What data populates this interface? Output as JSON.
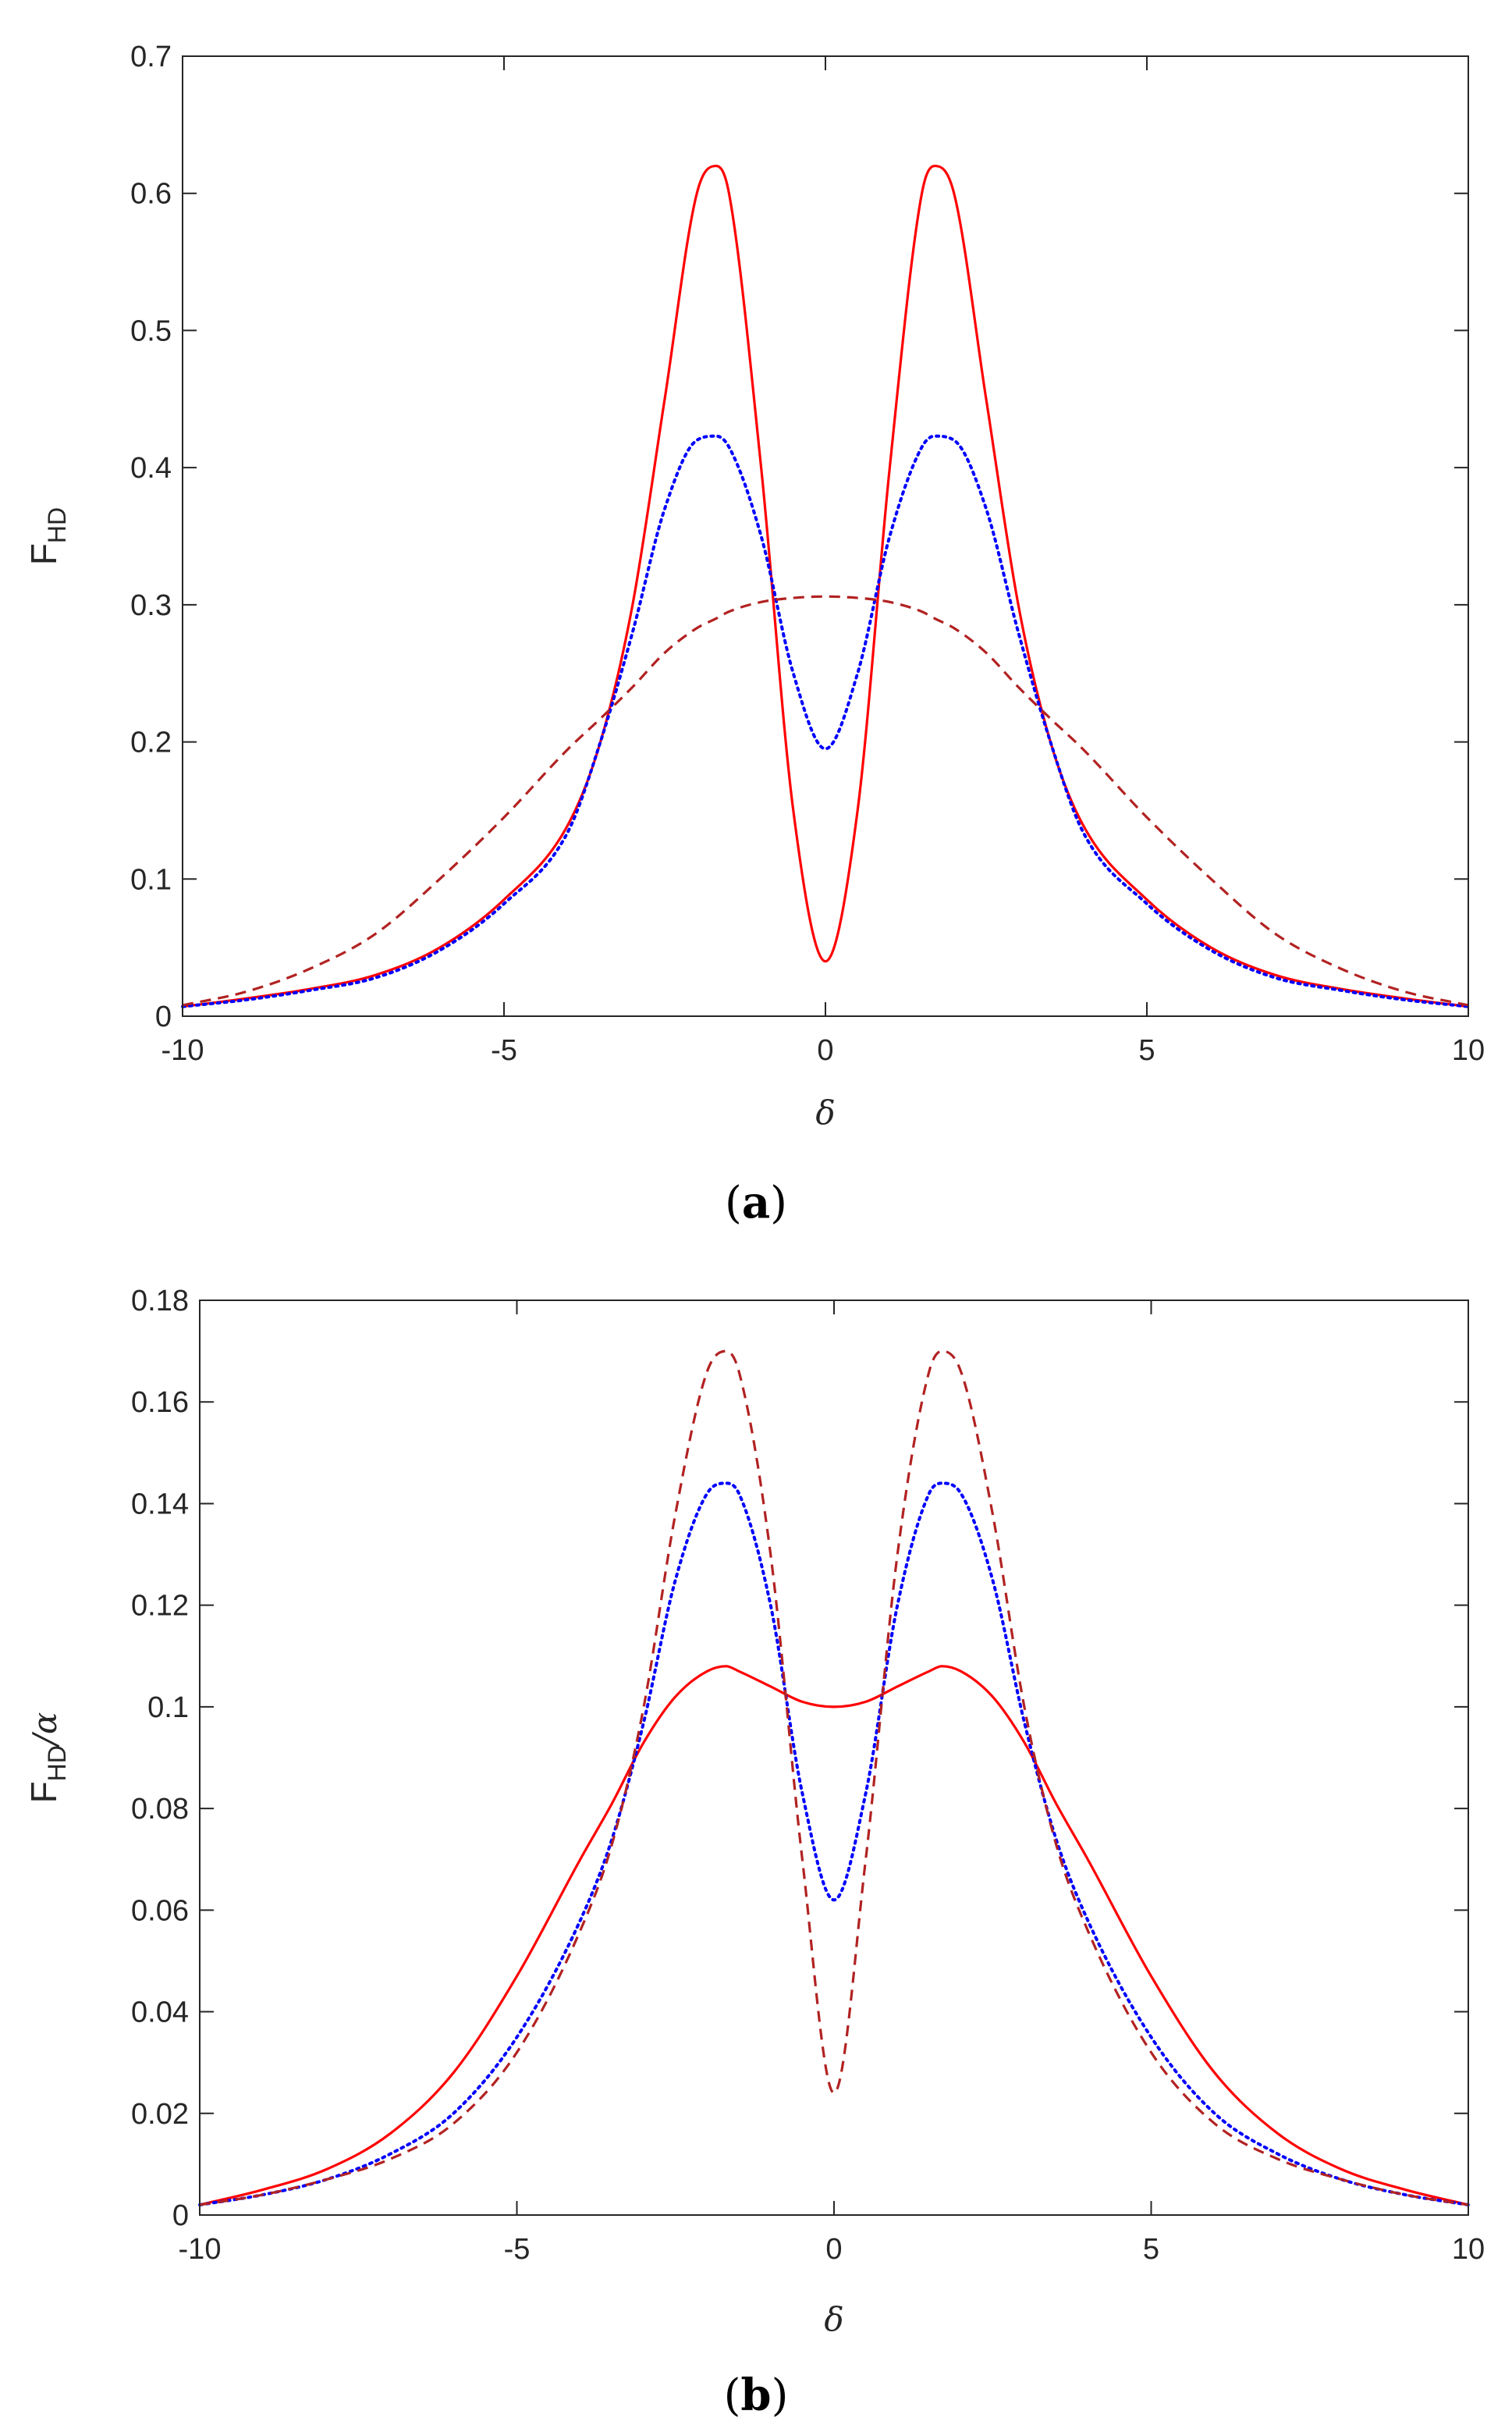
{
  "chart_data": [
    {
      "type": "line",
      "panel_label": "a",
      "xlabel": "δ",
      "ylabel": "F",
      "ylabel_sub": "HD",
      "ylabel_suffix": "",
      "xlim": [
        -10,
        10
      ],
      "ylim": [
        0,
        0.7
      ],
      "xticks": [
        -10,
        -5,
        0,
        5,
        10
      ],
      "xtick_labels": [
        "-10",
        "-5",
        "0",
        "5",
        "10"
      ],
      "yticks": [
        0,
        0.1,
        0.2,
        0.3,
        0.4,
        0.5,
        0.6,
        0.7
      ],
      "ytick_labels": [
        "0",
        "0.1",
        "0.2",
        "0.3",
        "0.4",
        "0.5",
        "0.6",
        "0.7"
      ],
      "grid": false,
      "x": [
        -10,
        -9,
        -8,
        -7,
        -6,
        -5,
        -4,
        -3.5,
        -3,
        -2.5,
        -2,
        -1.7,
        -1.5,
        -1,
        -0.5,
        0,
        0.5,
        1,
        1.5,
        1.7,
        2,
        2.5,
        3,
        3.5,
        4,
        5,
        6,
        7,
        8,
        9,
        10
      ],
      "series": [
        {
          "name": "solid",
          "color": "#ff0000",
          "style": "solid",
          "values": [
            0.007,
            0.013,
            0.02,
            0.03,
            0.05,
            0.085,
            0.14,
            0.2,
            0.3,
            0.45,
            0.6,
            0.62,
            0.6,
            0.4,
            0.15,
            0.04,
            0.15,
            0.4,
            0.6,
            0.62,
            0.6,
            0.45,
            0.3,
            0.2,
            0.14,
            0.085,
            0.05,
            0.03,
            0.02,
            0.013,
            0.007
          ]
        },
        {
          "name": "dotted",
          "color": "#0000ff",
          "style": "dotted",
          "values": [
            0.007,
            0.012,
            0.019,
            0.028,
            0.048,
            0.082,
            0.135,
            0.2,
            0.28,
            0.37,
            0.42,
            0.423,
            0.415,
            0.35,
            0.25,
            0.195,
            0.25,
            0.35,
            0.415,
            0.423,
            0.42,
            0.37,
            0.28,
            0.2,
            0.135,
            0.082,
            0.048,
            0.028,
            0.019,
            0.012,
            0.007
          ]
        },
        {
          "name": "dashed",
          "color": "#b22222",
          "style": "dashed",
          "values": [
            0.008,
            0.018,
            0.035,
            0.06,
            0.1,
            0.145,
            0.195,
            0.217,
            0.24,
            0.265,
            0.283,
            0.29,
            0.295,
            0.302,
            0.305,
            0.306,
            0.305,
            0.302,
            0.295,
            0.29,
            0.283,
            0.265,
            0.24,
            0.217,
            0.195,
            0.145,
            0.1,
            0.06,
            0.035,
            0.018,
            0.008
          ]
        }
      ]
    },
    {
      "type": "line",
      "panel_label": "b",
      "xlabel": "δ",
      "ylabel": "F",
      "ylabel_sub": "HD",
      "ylabel_suffix": "/α",
      "xlim": [
        -10,
        10
      ],
      "ylim": [
        0,
        0.18
      ],
      "xticks": [
        -10,
        -5,
        0,
        5,
        10
      ],
      "xtick_labels": [
        "-10",
        "-5",
        "0",
        "5",
        "10"
      ],
      "yticks": [
        0,
        0.02,
        0.04,
        0.06,
        0.08,
        0.1,
        0.12,
        0.14,
        0.16,
        0.18
      ],
      "ytick_labels": [
        "0",
        "0.02",
        "0.04",
        "0.06",
        "0.08",
        "0.1",
        "0.12",
        "0.14",
        "0.16",
        "0.18"
      ],
      "grid": false,
      "x": [
        -10,
        -9,
        -8,
        -7,
        -6,
        -5,
        -4,
        -3.5,
        -3,
        -2.5,
        -2,
        -1.7,
        -1.5,
        -1,
        -0.5,
        0,
        0.5,
        1,
        1.5,
        1.7,
        2,
        2.5,
        3,
        3.5,
        4,
        5,
        6,
        7,
        8,
        9,
        10
      ],
      "series": [
        {
          "name": "solid",
          "color": "#ff0000",
          "style": "solid",
          "values": [
            0.002,
            0.005,
            0.009,
            0.016,
            0.028,
            0.047,
            0.07,
            0.081,
            0.093,
            0.102,
            0.107,
            0.108,
            0.107,
            0.104,
            0.101,
            0.1,
            0.101,
            0.104,
            0.107,
            0.108,
            0.107,
            0.102,
            0.093,
            0.081,
            0.07,
            0.047,
            0.028,
            0.016,
            0.009,
            0.005,
            0.002
          ]
        },
        {
          "name": "dotted",
          "color": "#0000ff",
          "style": "dotted",
          "values": [
            0.002,
            0.004,
            0.007,
            0.012,
            0.02,
            0.035,
            0.058,
            0.074,
            0.097,
            0.125,
            0.142,
            0.144,
            0.142,
            0.12,
            0.083,
            0.062,
            0.083,
            0.12,
            0.142,
            0.144,
            0.142,
            0.125,
            0.097,
            0.074,
            0.058,
            0.035,
            0.02,
            0.012,
            0.007,
            0.004,
            0.002
          ]
        },
        {
          "name": "dashed",
          "color": "#b22222",
          "style": "dashed",
          "values": [
            0.002,
            0.004,
            0.007,
            0.011,
            0.018,
            0.032,
            0.056,
            0.073,
            0.1,
            0.138,
            0.166,
            0.17,
            0.166,
            0.13,
            0.07,
            0.024,
            0.07,
            0.13,
            0.166,
            0.17,
            0.166,
            0.138,
            0.1,
            0.073,
            0.056,
            0.032,
            0.018,
            0.011,
            0.007,
            0.004,
            0.002
          ]
        }
      ]
    }
  ]
}
